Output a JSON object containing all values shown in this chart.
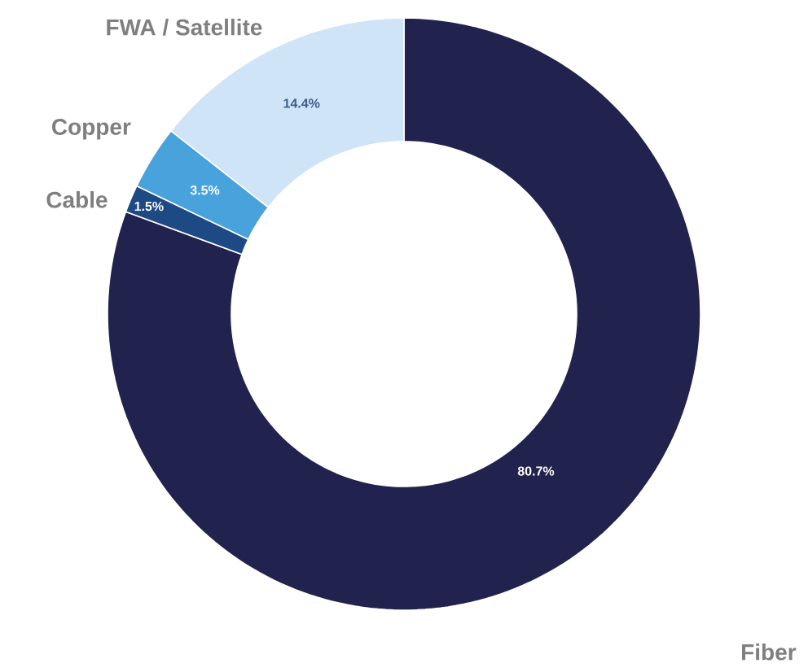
{
  "chart_data": {
    "type": "donut",
    "categories": [
      "Fiber",
      "Cable",
      "Copper",
      "FWA / Satellite"
    ],
    "values": [
      80.7,
      1.5,
      3.5,
      14.4
    ],
    "value_labels": [
      "80.7%",
      "1.5%",
      "3.5%",
      "14.4%"
    ],
    "colors": [
      "#22224e",
      "#1d4a85",
      "#48a2dc",
      "#cfe4f6"
    ]
  }
}
